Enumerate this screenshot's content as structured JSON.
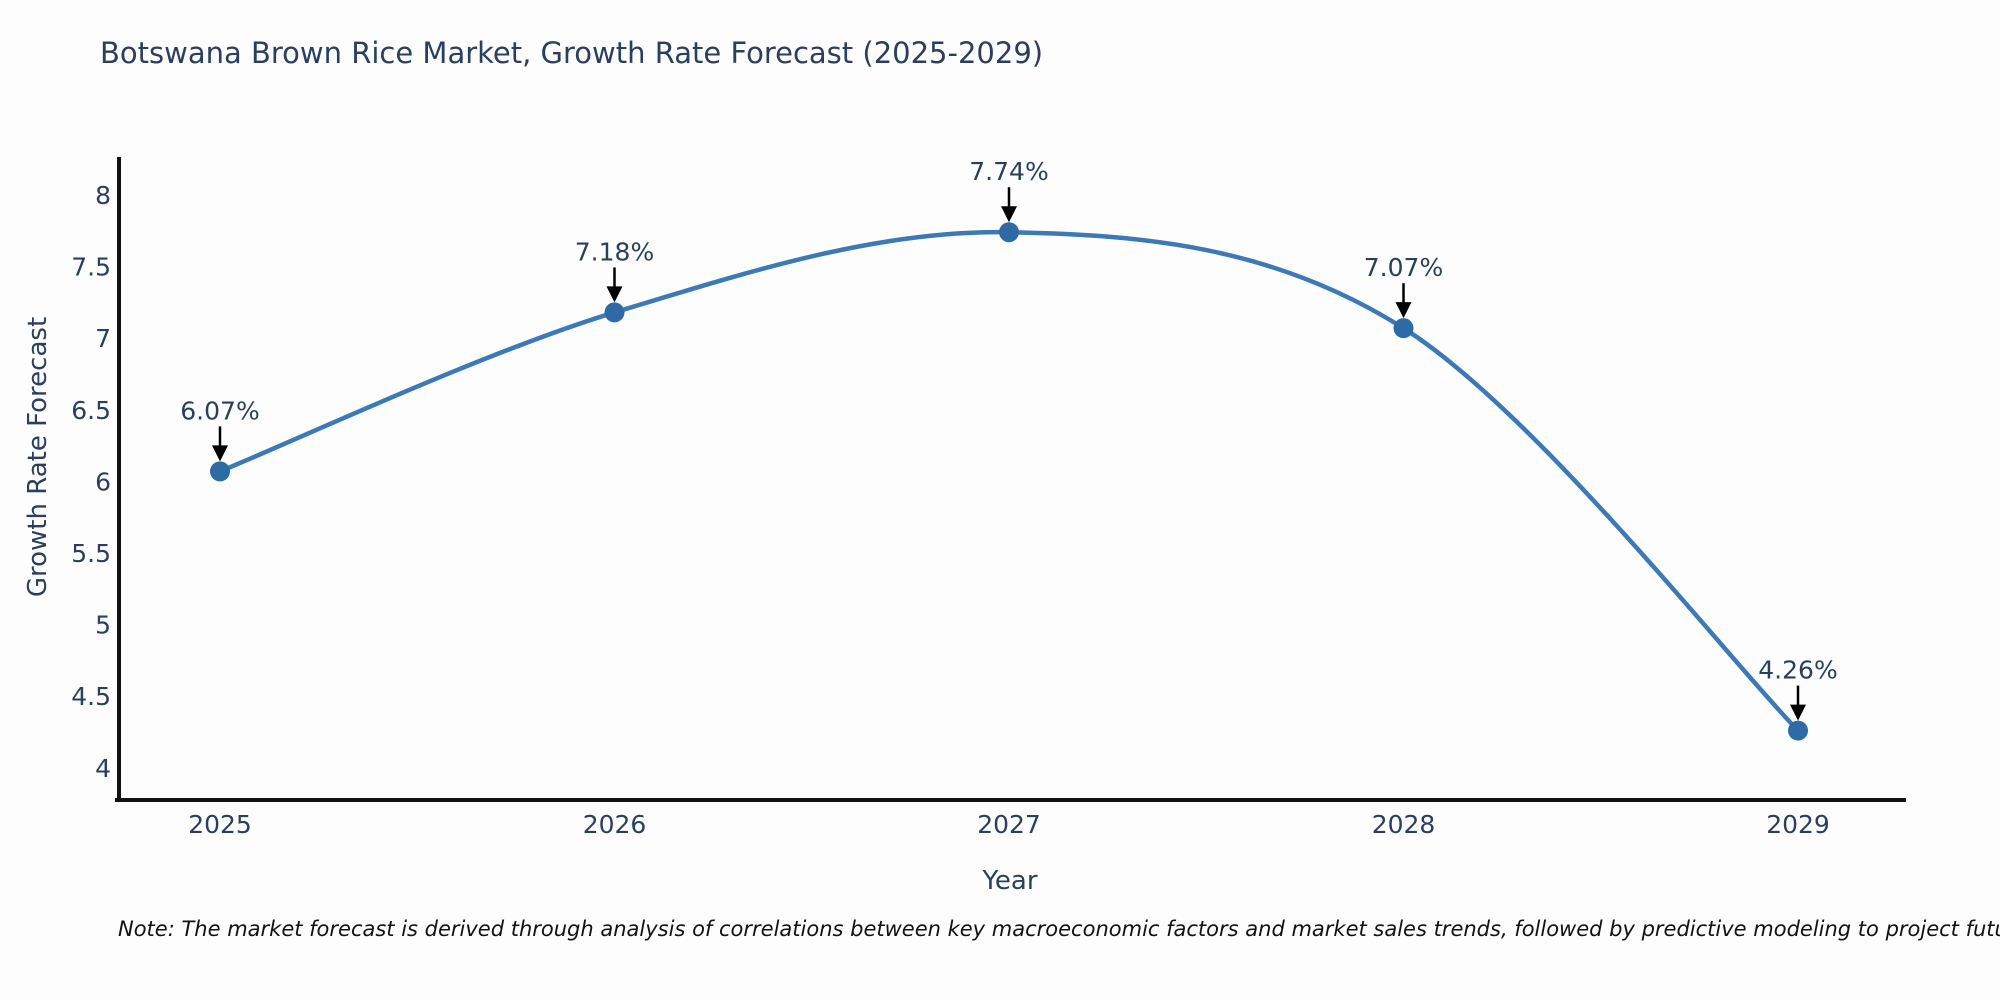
{
  "note": "Note: The market forecast is derived through analysis of correlations between key macroeconomic factors and market sales trends, followed by predictive modeling to project future sales",
  "chart_data": {
    "type": "line",
    "title": "Botswana Brown Rice Market, Growth Rate Forecast (2025-2029)",
    "xlabel": "Year",
    "ylabel": "Growth Rate Forecast",
    "x": [
      2025,
      2026,
      2027,
      2028,
      2029
    ],
    "series": [
      {
        "name": "Growth Rate Forecast",
        "values": [
          6.07,
          7.18,
          7.74,
          7.07,
          4.26
        ]
      }
    ],
    "point_labels": [
      "6.07%",
      "7.18%",
      "7.74%",
      "7.07%",
      "4.26%"
    ],
    "xticks": [
      "2025",
      "2026",
      "2027",
      "2028",
      "2029"
    ],
    "yticks": [
      4,
      4.5,
      5,
      5.5,
      6,
      6.5,
      7,
      7.5,
      8
    ],
    "ylim": [
      3.77,
      8.28
    ],
    "grid": false,
    "legend": "none",
    "curve": "spline",
    "colors": {
      "line": "#3c79b5",
      "marker": "#2e6ba6",
      "axis": "#111111",
      "tick_text": "#2a3f5f",
      "annotation_text": "#2a3f5f",
      "annotation_arrow": "#000000",
      "background": "#fdfdfe"
    }
  }
}
